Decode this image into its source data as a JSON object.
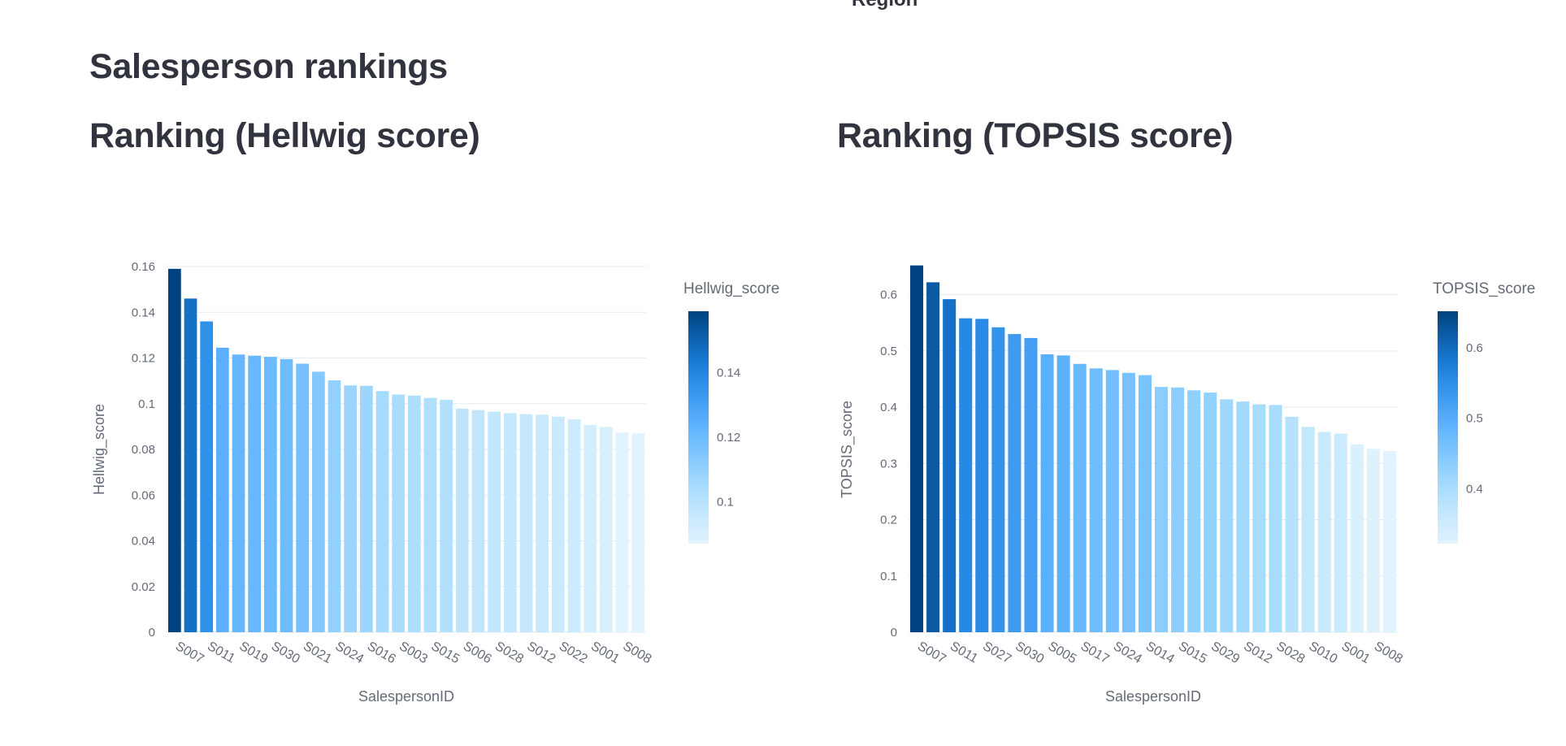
{
  "top_cut_label": "Region",
  "page_heading": "Salesperson rankings",
  "chart_data": [
    {
      "type": "bar",
      "heading": "Ranking (Hellwig score)",
      "xlabel": "SalespersonID",
      "ylabel": "Hellwig_score",
      "ylim": [
        0,
        0.16
      ],
      "yticks": [
        0,
        0.02,
        0.04,
        0.06,
        0.08,
        0.1,
        0.12,
        0.14,
        0.16
      ],
      "grid": true,
      "legend": "colorbar-right",
      "colorbar_title": "Hellwig_score",
      "colorbar_ticks": [
        0.1,
        0.12,
        0.14
      ],
      "colorbar_range": [
        0.087,
        0.159
      ],
      "color_low": "#e1f3fe",
      "color_high": "#004280",
      "categories": [
        "S007",
        "",
        "S011",
        "",
        "S019",
        "",
        "S030",
        "",
        "S021",
        "",
        "S024",
        "",
        "S016",
        "",
        "S003",
        "",
        "S015",
        "",
        "S006",
        "",
        "S028",
        "",
        "S012",
        "",
        "S022",
        "",
        "S001",
        "",
        "S008",
        ""
      ],
      "shown_tick_labels": [
        "S007",
        "S011",
        "S019",
        "S030",
        "S021",
        "S024",
        "S016",
        "S003",
        "S015",
        "S006",
        "S028",
        "S012",
        "S022",
        "S001",
        "S008"
      ],
      "values": [
        0.159,
        0.146,
        0.136,
        0.1245,
        0.1215,
        0.121,
        0.1205,
        0.1195,
        0.1175,
        0.114,
        0.1102,
        0.108,
        0.1078,
        0.1055,
        0.104,
        0.1035,
        0.1025,
        0.1017,
        0.0978,
        0.0972,
        0.0965,
        0.0958,
        0.0954,
        0.0952,
        0.0943,
        0.0932,
        0.0907,
        0.0898,
        0.0873,
        0.087
      ]
    },
    {
      "type": "bar",
      "heading": "Ranking (TOPSIS score)",
      "xlabel": "SalespersonID",
      "ylabel": "TOPSIS_score",
      "ylim": [
        0,
        0.65
      ],
      "yticks": [
        0,
        0.1,
        0.2,
        0.3,
        0.4,
        0.5,
        0.6
      ],
      "grid": true,
      "legend": "colorbar-right",
      "colorbar_title": "TOPSIS_score",
      "colorbar_ticks": [
        0.4,
        0.5,
        0.6
      ],
      "colorbar_range": [
        0.322,
        0.652
      ],
      "color_low": "#e1f3fe",
      "color_high": "#004280",
      "categories": [
        "S007",
        "",
        "S011",
        "",
        "S027",
        "",
        "S030",
        "",
        "S005",
        "",
        "S017",
        "",
        "S024",
        "",
        "S014",
        "",
        "S015",
        "",
        "S029",
        "",
        "S012",
        "",
        "S028",
        "",
        "S010",
        "",
        "S001",
        "",
        "S008",
        ""
      ],
      "shown_tick_labels": [
        "S007",
        "S011",
        "S027",
        "S030",
        "S005",
        "S017",
        "S024",
        "S014",
        "S015",
        "S029",
        "S012",
        "S028",
        "S010",
        "S001",
        "S008"
      ],
      "values": [
        0.652,
        0.622,
        0.592,
        0.558,
        0.557,
        0.542,
        0.53,
        0.523,
        0.494,
        0.492,
        0.477,
        0.469,
        0.466,
        0.461,
        0.457,
        0.436,
        0.435,
        0.43,
        0.426,
        0.414,
        0.41,
        0.405,
        0.404,
        0.383,
        0.365,
        0.356,
        0.353,
        0.334,
        0.326,
        0.322
      ]
    }
  ]
}
